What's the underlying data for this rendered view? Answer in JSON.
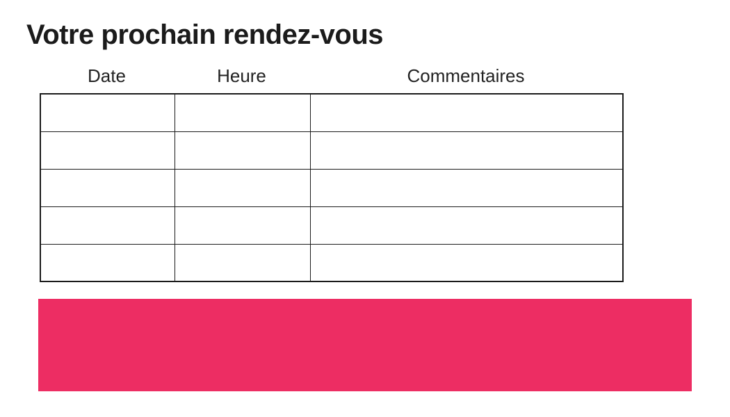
{
  "page": {
    "title": "Votre prochain rendez-vous"
  },
  "table": {
    "columns": [
      {
        "label": "Date"
      },
      {
        "label": "Heure"
      },
      {
        "label": "Commentaires"
      }
    ],
    "rows": [
      [
        "",
        "",
        ""
      ],
      [
        "",
        "",
        ""
      ],
      [
        "",
        "",
        ""
      ],
      [
        "",
        "",
        ""
      ],
      [
        "",
        "",
        ""
      ]
    ]
  },
  "banner": {
    "text": ""
  },
  "colors": {
    "accent": "#ED2D63",
    "text": "#1B1B1B",
    "table_border": "#1A1A1A"
  }
}
